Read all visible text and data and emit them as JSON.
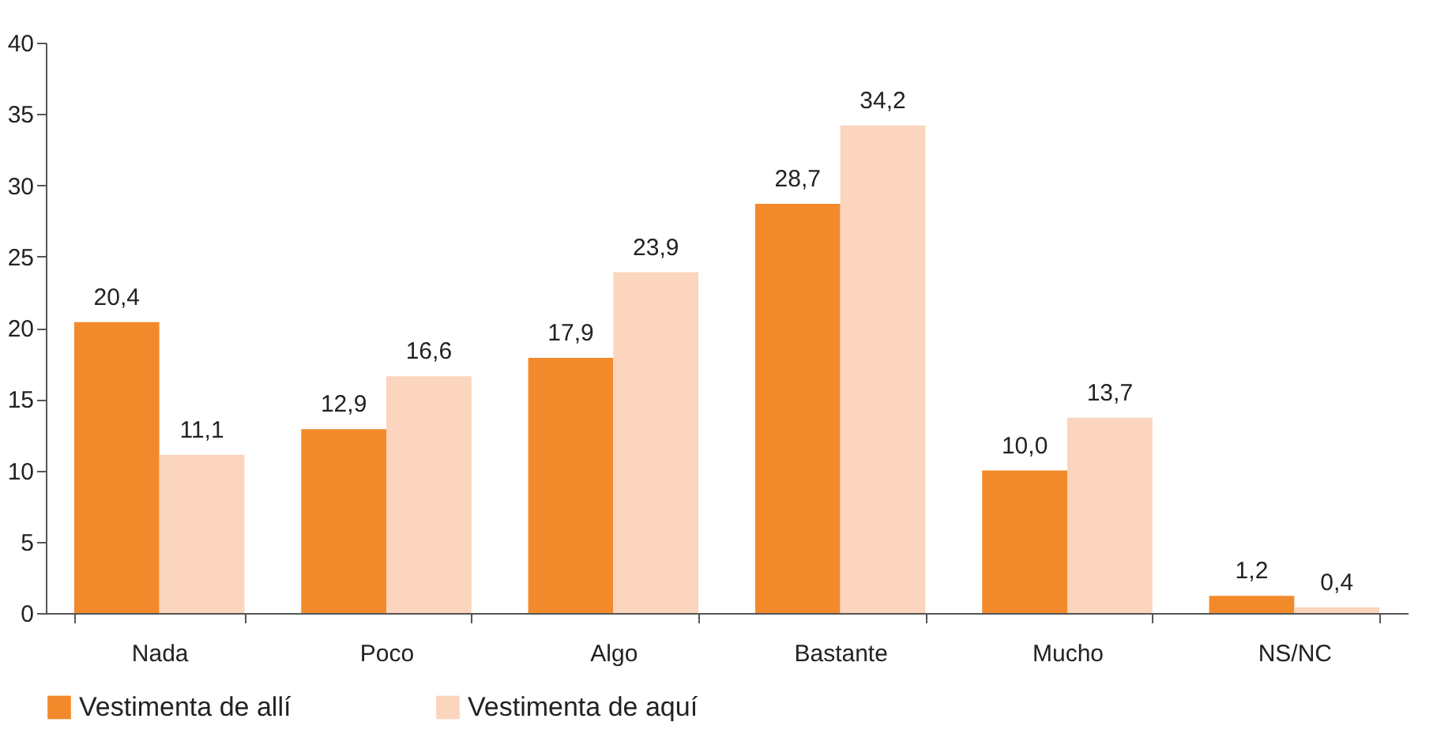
{
  "chart_data": {
    "type": "bar",
    "categories": [
      "Nada",
      "Poco",
      "Algo",
      "Bastante",
      "Mucho",
      "NS/NC"
    ],
    "series": [
      {
        "name": "Vestimenta de allí",
        "color": "#f28a2c",
        "values": [
          20.4,
          12.9,
          17.9,
          28.7,
          10.0,
          1.2
        ],
        "value_labels": [
          "20,4",
          "12,9",
          "17,9",
          "28,7",
          "10,0",
          "1,2"
        ]
      },
      {
        "name": "Vestimenta de aquí",
        "color": "#fbd5bd",
        "values": [
          11.1,
          16.6,
          23.9,
          34.2,
          13.7,
          0.4
        ],
        "value_labels": [
          "11,1",
          "16,6",
          "23,9",
          "34,2",
          "13,7",
          "0,4"
        ]
      }
    ],
    "ylim": [
      0,
      40
    ],
    "yticks": [
      0,
      5,
      10,
      15,
      20,
      25,
      30,
      35,
      40
    ],
    "grid": false,
    "legend": "bottom"
  }
}
